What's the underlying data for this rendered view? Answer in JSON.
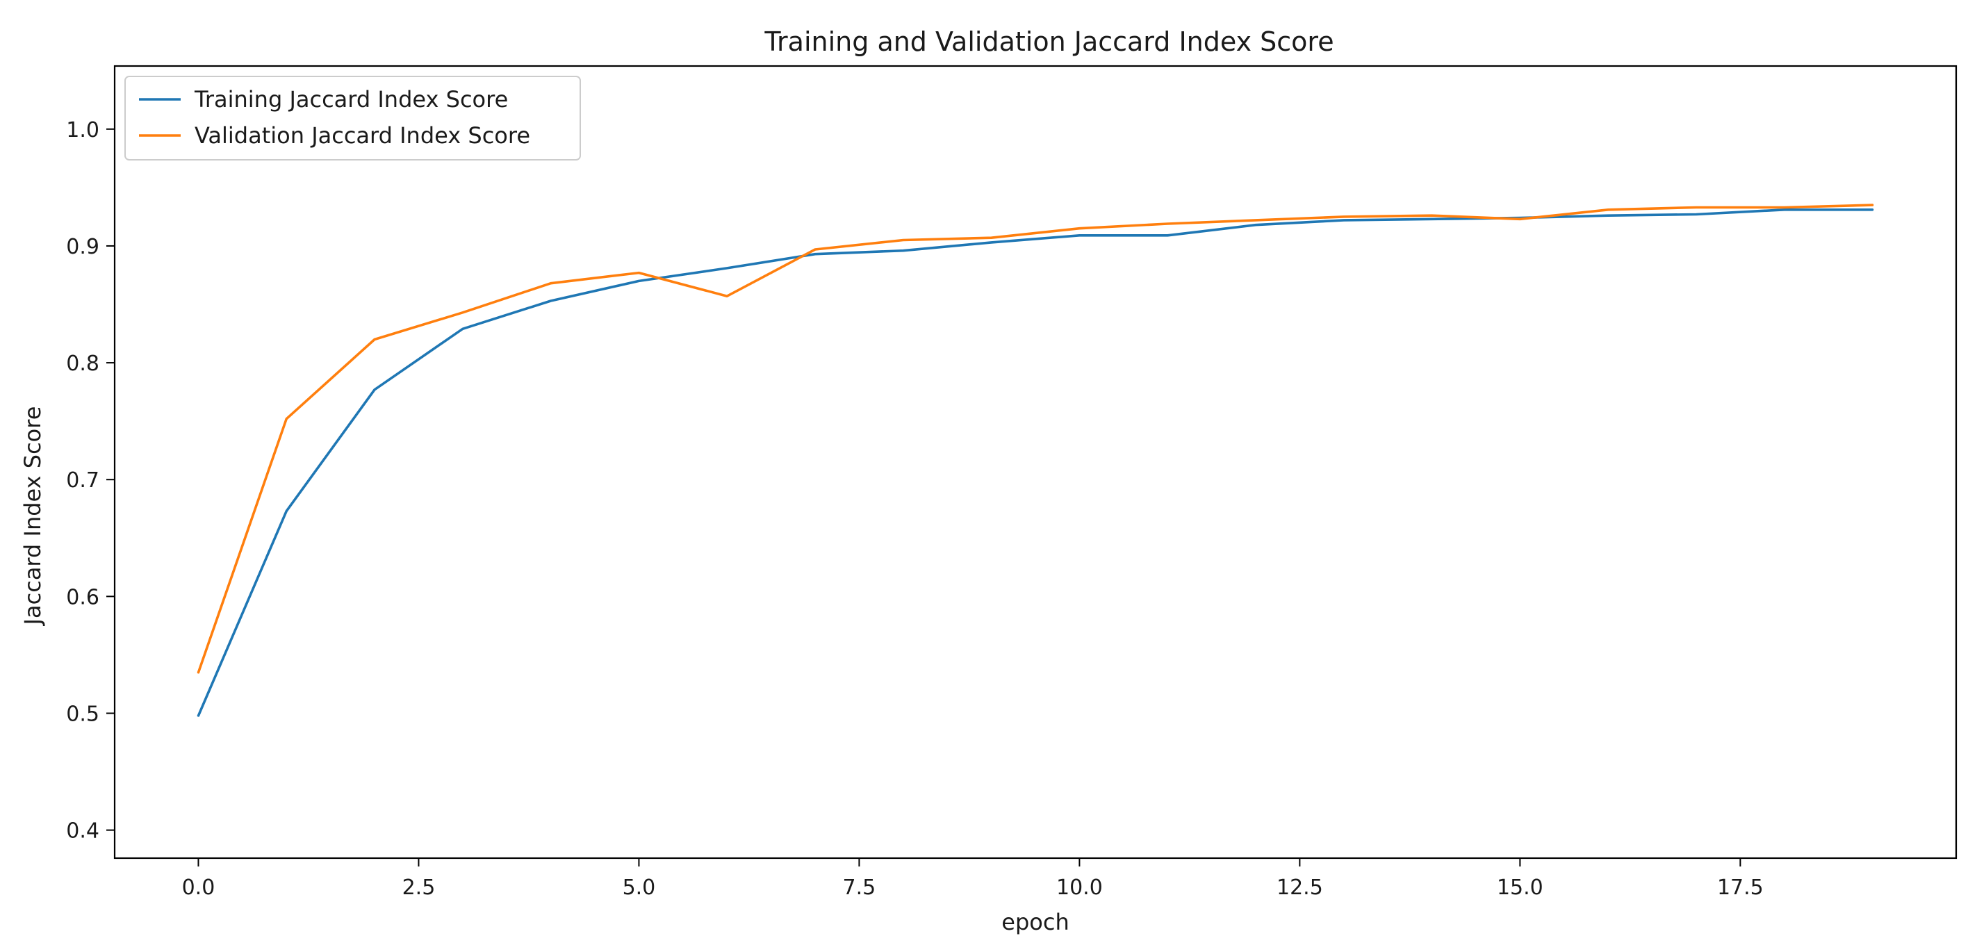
{
  "chart_data": {
    "type": "line",
    "title": "Training and Validation Jaccard Index Score",
    "xlabel": "epoch",
    "ylabel": "Jaccard Index Score",
    "xlim": [
      -0.95,
      19.95
    ],
    "ylim": [
      0.376,
      1.054
    ],
    "xticks": [
      "0.0",
      "2.5",
      "5.0",
      "7.5",
      "10.0",
      "12.5",
      "15.0",
      "17.5"
    ],
    "xtick_values": [
      0,
      2.5,
      5,
      7.5,
      10,
      12.5,
      15,
      17.5
    ],
    "yticks": [
      "0.4",
      "0.5",
      "0.6",
      "0.7",
      "0.8",
      "0.9",
      "1.0"
    ],
    "ytick_values": [
      0.4,
      0.5,
      0.6,
      0.7,
      0.8,
      0.9,
      1.0
    ],
    "grid": false,
    "legend_position": "top-left",
    "x": [
      0,
      1,
      2,
      3,
      4,
      5,
      6,
      7,
      8,
      9,
      10,
      11,
      12,
      13,
      14,
      15,
      16,
      17,
      18,
      19
    ],
    "series": [
      {
        "name": "Training Jaccard Index Score",
        "color": "#1f77b4",
        "values": [
          0.498,
          0.673,
          0.777,
          0.829,
          0.853,
          0.87,
          0.881,
          0.893,
          0.896,
          0.903,
          0.909,
          0.909,
          0.918,
          0.922,
          0.923,
          0.924,
          0.926,
          0.927,
          0.931,
          0.931
        ]
      },
      {
        "name": "Validation Jaccard Index Score",
        "color": "#ff7f0e",
        "values": [
          0.535,
          0.752,
          0.82,
          0.843,
          0.868,
          0.877,
          0.857,
          0.897,
          0.905,
          0.907,
          0.915,
          0.919,
          0.922,
          0.925,
          0.926,
          0.923,
          0.931,
          0.933,
          0.933,
          0.935
        ]
      }
    ]
  }
}
